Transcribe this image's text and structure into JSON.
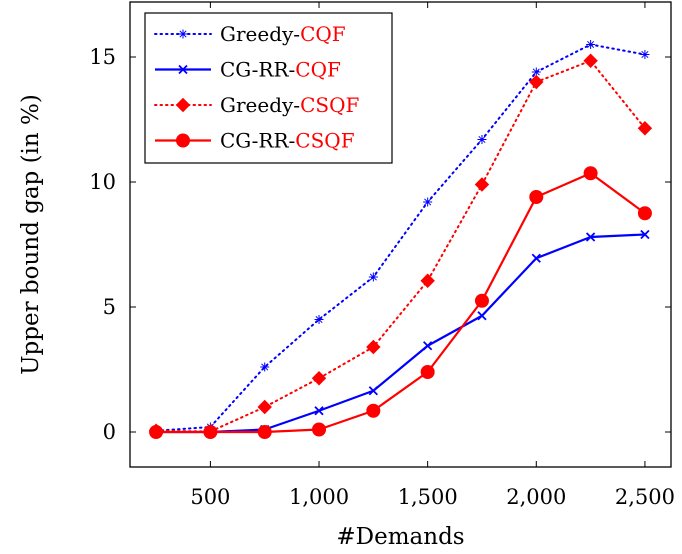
{
  "chart_data": {
    "type": "line",
    "title": "",
    "xlabel": "#Demands",
    "ylabel": "Upper bound gap (in %)",
    "x": [
      250,
      500,
      750,
      1000,
      1250,
      1500,
      1750,
      2000,
      2250,
      2500
    ],
    "xlim": [
      130,
      2620
    ],
    "ylim": [
      -1.4,
      17.2
    ],
    "xticks": [
      500,
      1000,
      1500,
      2000,
      2500
    ],
    "xtick_labels": [
      "500",
      "1,000",
      "1,500",
      "2,000",
      "2,500"
    ],
    "yticks": [
      0,
      5,
      10,
      15
    ],
    "ytick_labels": [
      "0",
      "5",
      "10",
      "15"
    ],
    "grid": false,
    "legend_position": "top-left",
    "series": [
      {
        "name_parts": [
          "Greedy-",
          "CQF"
        ],
        "name_colors": [
          "#000000",
          "#ff0000"
        ],
        "color": "#0000ff",
        "line_style": "dotted",
        "marker": "star",
        "values": [
          0.05,
          0.2,
          2.6,
          4.5,
          6.2,
          9.2,
          11.7,
          14.4,
          15.5,
          15.1
        ]
      },
      {
        "name_parts": [
          "CG-RR-",
          "CQF"
        ],
        "name_colors": [
          "#000000",
          "#ff0000"
        ],
        "color": "#0000ff",
        "line_style": "solid",
        "marker": "x",
        "values": [
          0.0,
          0.0,
          0.1,
          0.85,
          1.65,
          3.45,
          4.65,
          6.95,
          7.8,
          7.9
        ]
      },
      {
        "name_parts": [
          "Greedy-",
          "CSQF"
        ],
        "name_colors": [
          "#000000",
          "#ff0000"
        ],
        "color": "#ff0000",
        "line_style": "dotted",
        "marker": "diamond",
        "values": [
          0.05,
          0.02,
          1.0,
          2.15,
          3.4,
          6.05,
          9.9,
          14.0,
          14.85,
          12.15
        ]
      },
      {
        "name_parts": [
          "CG-RR-",
          "CSQF"
        ],
        "name_colors": [
          "#000000",
          "#ff0000"
        ],
        "color": "#ff0000",
        "line_style": "solid",
        "marker": "circle",
        "values": [
          0.0,
          0.0,
          0.0,
          0.1,
          0.85,
          2.4,
          5.25,
          9.4,
          10.35,
          8.75
        ]
      }
    ]
  }
}
